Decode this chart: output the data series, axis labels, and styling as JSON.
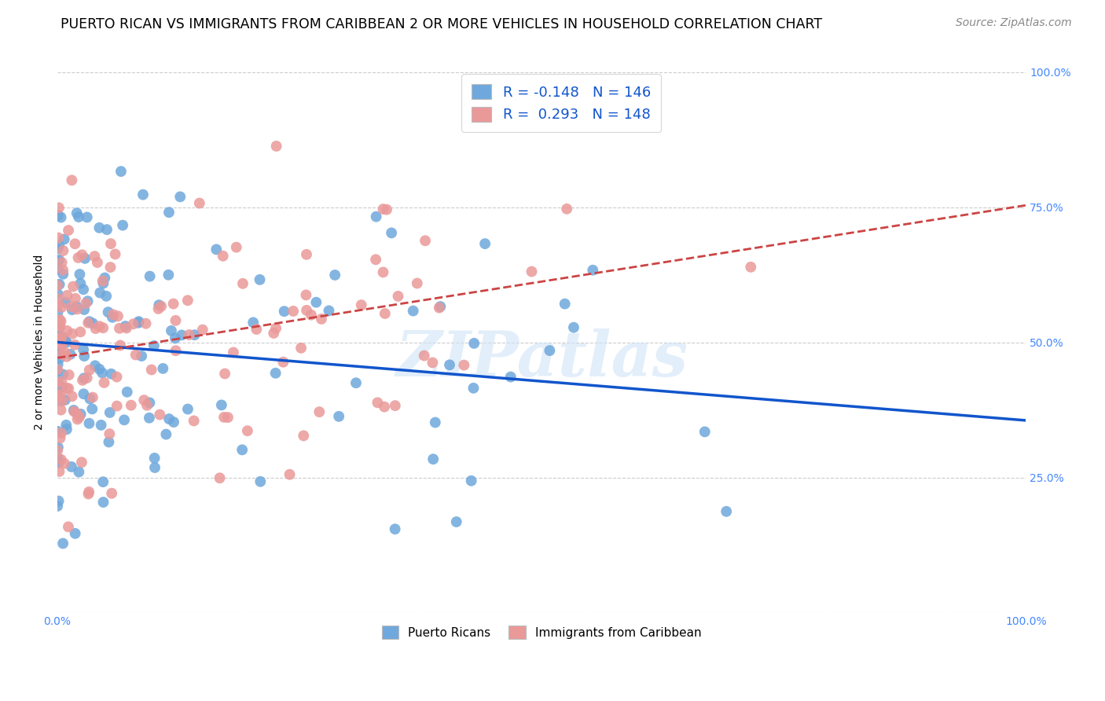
{
  "title": "PUERTO RICAN VS IMMIGRANTS FROM CARIBBEAN 2 OR MORE VEHICLES IN HOUSEHOLD CORRELATION CHART",
  "source": "Source: ZipAtlas.com",
  "ylabel": "2 or more Vehicles in Household",
  "xlim": [
    0,
    1
  ],
  "ylim": [
    0,
    1
  ],
  "blue_R": -0.148,
  "blue_N": 146,
  "pink_R": 0.293,
  "pink_N": 148,
  "blue_color": "#6fa8dc",
  "pink_color": "#ea9999",
  "blue_line_color": "#1155cc",
  "pink_line_color": "#cc4444",
  "watermark": "ZIPatlas",
  "legend_label_blue": "Puerto Ricans",
  "legend_label_pink": "Immigrants from Caribbean",
  "title_fontsize": 12.5,
  "source_fontsize": 10,
  "axis_label_fontsize": 10,
  "tick_label_fontsize": 10,
  "tick_color": "#4488ff",
  "grid_color": "#cccccc",
  "watermark_color": "#d0e4f7"
}
